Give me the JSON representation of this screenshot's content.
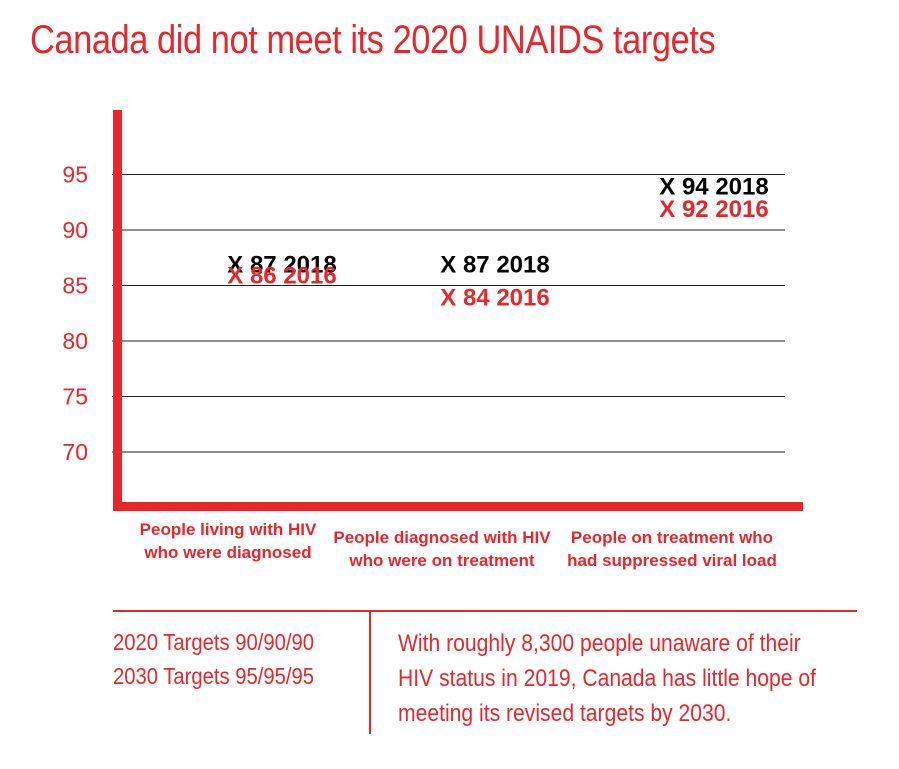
{
  "title": "Canada did not meet its 2020 UNAIDS targets",
  "colors": {
    "accent": "#e8262c",
    "text": "#000000",
    "grid": "#222222"
  },
  "chart_data": {
    "type": "scatter",
    "categories": [
      "People living with HIV who were diagnosed",
      "People diagnosed with HIV who were on treatment",
      "People on treatment who had suppressed viral load"
    ],
    "category_lines": [
      [
        "People living with HIV",
        "who were diagnosed"
      ],
      [
        "People diagnosed with HIV",
        "who were on treatment"
      ],
      [
        "People on treatment who",
        "had suppressed viral load"
      ]
    ],
    "series": [
      {
        "name": "2018",
        "values": [
          87,
          87,
          94
        ],
        "labels": [
          "X 87 2018",
          "X 87 2018",
          "X 94 2018"
        ],
        "color": "#000000"
      },
      {
        "name": "2016",
        "values": [
          86,
          84,
          92
        ],
        "labels": [
          "X 86 2016",
          "X 84 2016",
          "X 92 2016"
        ],
        "color": "#e8262c"
      }
    ],
    "y_ticks": [
      70,
      75,
      80,
      85,
      90,
      95
    ],
    "ylim": [
      65,
      100
    ],
    "grid": true,
    "marker": "X"
  },
  "footer": {
    "targets": [
      "2020 Targets 90/90/90",
      "2030 Targets 95/95/95"
    ],
    "note": "With roughly 8,300 people unaware of their HIV status in 2019, Canada has little hope of meeting its revised targets by 2030."
  }
}
